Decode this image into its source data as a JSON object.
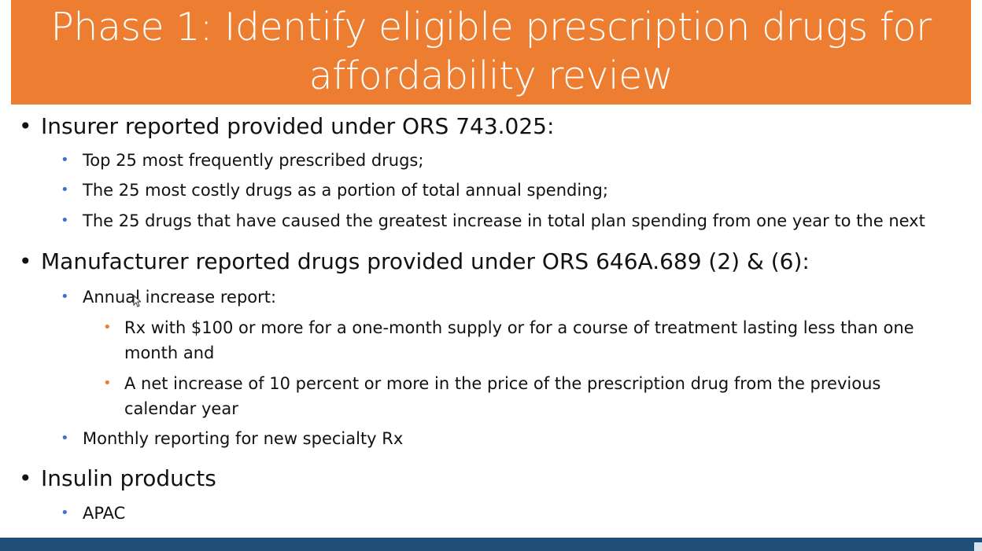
{
  "title": "Phase 1: Identify eligible prescription drugs for affordability review",
  "sections": [
    {
      "text": "Insurer reported provided under ORS 743.025:",
      "items": [
        "Top 25 most frequently prescribed drugs;",
        "The 25 most costly drugs as a portion of total annual spending;",
        "The 25 drugs that have caused the greatest increase in total plan spending from one year to the next"
      ]
    },
    {
      "text": "Manufacturer reported drugs provided under ORS 646A.689 (2) & (6):",
      "items": [
        {
          "text": "Annual increase report:",
          "subitems": [
            "Rx with $100 or more for a one-month supply or for a course of treatment lasting less than one month and",
            "A net increase of 10 percent or more in the price of the prescription drug from the previous calendar year"
          ]
        },
        "Monthly reporting for new specialty Rx"
      ]
    },
    {
      "text": "Insulin products",
      "items": [
        "APAC"
      ]
    }
  ],
  "bullets": {
    "level1": "•",
    "level2": "•",
    "level3": "•"
  },
  "colors": {
    "title_bg": "#ed7d31",
    "level2_bullet": "#4472c4",
    "level3_bullet": "#ed7d31",
    "footer": "#1f4e79"
  }
}
